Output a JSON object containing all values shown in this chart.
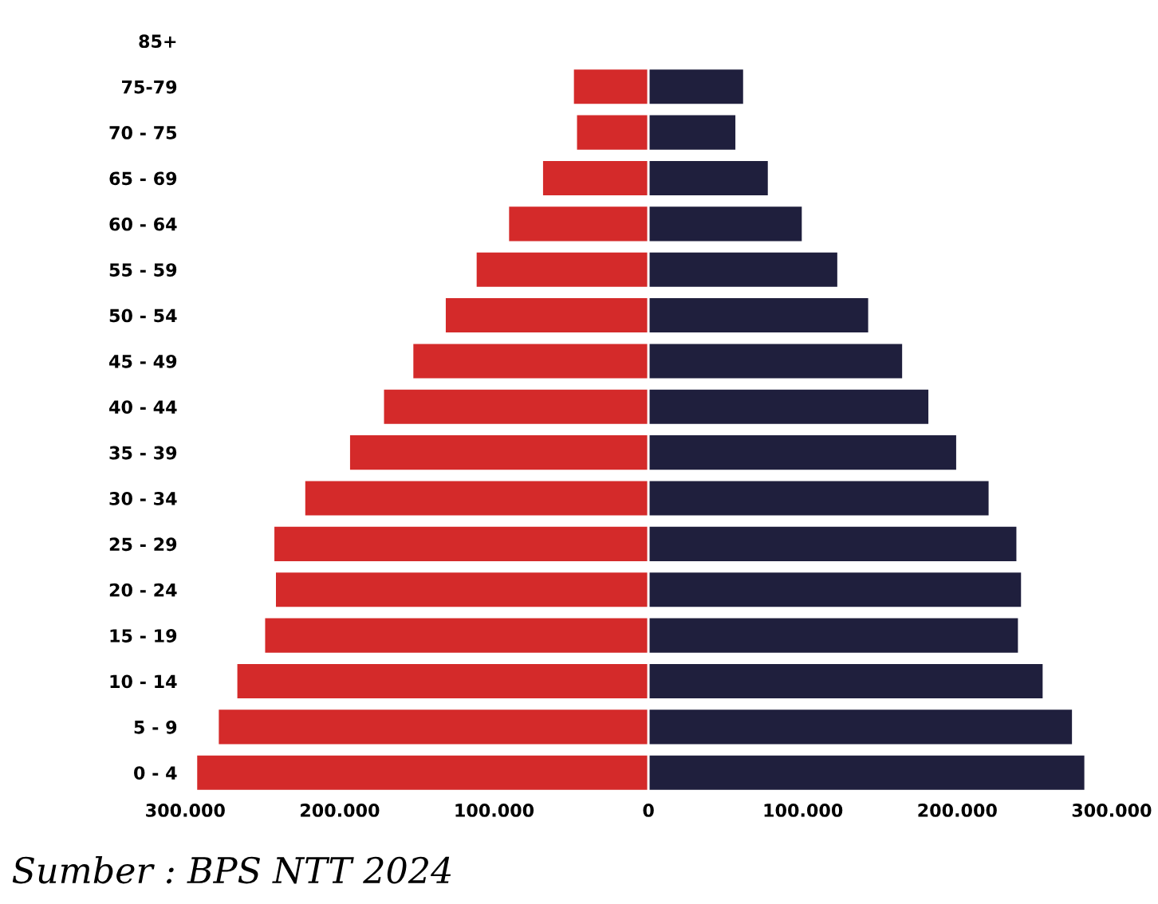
{
  "chart_data": {
    "type": "bar",
    "orientation": "horizontal",
    "stacked": true,
    "categories": [
      "85+",
      "75-79",
      "70 - 75",
      "65 - 69",
      "60 - 64",
      "55 - 59",
      "50 - 54",
      "45 - 49",
      "40 - 44",
      "35 - 39",
      "30 - 34",
      "25 - 29",
      "20 - 24",
      "15 - 19",
      "10 - 14",
      "5 - 9",
      "0 - 4"
    ],
    "series": [
      {
        "color": "#d42a2a",
        "values": [
          null,
          -49000,
          -47000,
          -69000,
          -91000,
          -112000,
          -132000,
          -153000,
          -172000,
          -194000,
          -223000,
          -243000,
          -242000,
          -249000,
          -267000,
          -279000,
          -293000
        ]
      },
      {
        "color": "#1f1f3d",
        "values": [
          null,
          62000,
          57000,
          78000,
          100000,
          123000,
          143000,
          165000,
          182000,
          200000,
          221000,
          239000,
          242000,
          240000,
          256000,
          275000,
          283000
        ]
      }
    ],
    "xlim": [
      -300000,
      300000
    ],
    "xticks": [
      {
        "value": -300000,
        "label": "300.000"
      },
      {
        "value": -200000,
        "label": "200.000"
      },
      {
        "value": -100000,
        "label": "100.000"
      },
      0,
      {
        "value": 100000,
        "label": "100.000"
      },
      {
        "value": 200000,
        "label": "200.000"
      },
      {
        "value": 300000,
        "label": "300.000"
      }
    ],
    "grid": false,
    "legend": false,
    "annotations": [
      "Sumber : BPS NTT 2024"
    ]
  }
}
